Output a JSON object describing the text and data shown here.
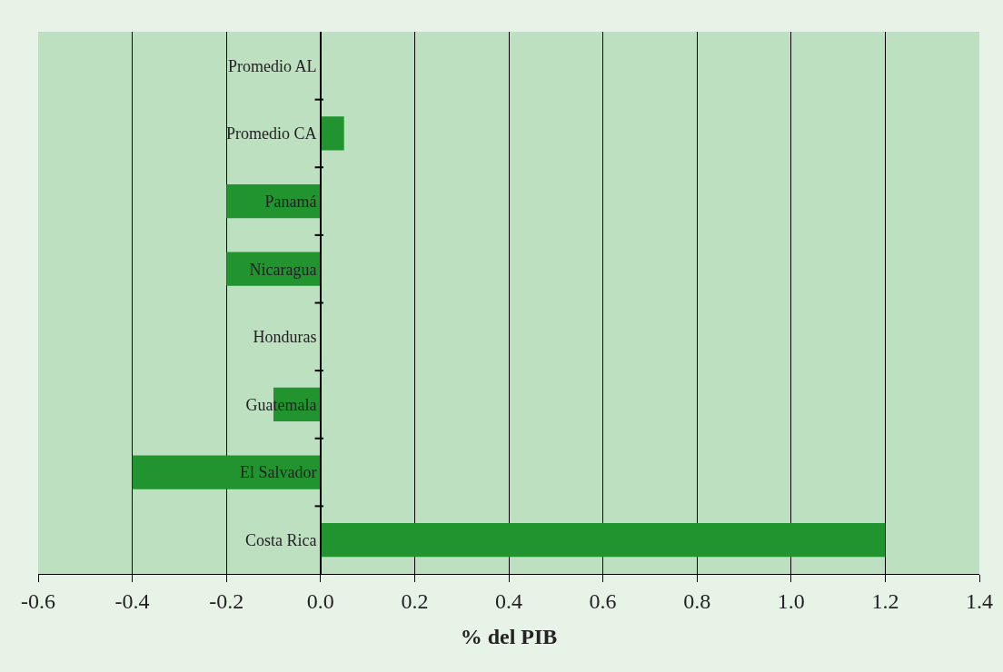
{
  "chart_data": {
    "type": "bar",
    "orientation": "horizontal",
    "xlabel": "% del PIB",
    "categories": [
      "Promedio AL",
      "Promedio CA",
      "Panamá",
      "Nicaragua",
      "Honduras",
      "Guatemala",
      "El Salvador",
      "Costa Rica"
    ],
    "values": [
      0,
      0.05,
      -0.2,
      -0.2,
      0,
      -0.1,
      -0.4,
      1.2
    ],
    "color": "#21942f",
    "xlim": [
      -0.6,
      1.4
    ],
    "xticks": [
      -0.6,
      -0.4,
      -0.2,
      {
        "value": 0,
        "label": "0.0"
      },
      0.2,
      0.4,
      0.6,
      0.8,
      {
        "value": 1,
        "label": "1.0"
      },
      1.2,
      1.4
    ],
    "grid": "x",
    "legend": false
  }
}
